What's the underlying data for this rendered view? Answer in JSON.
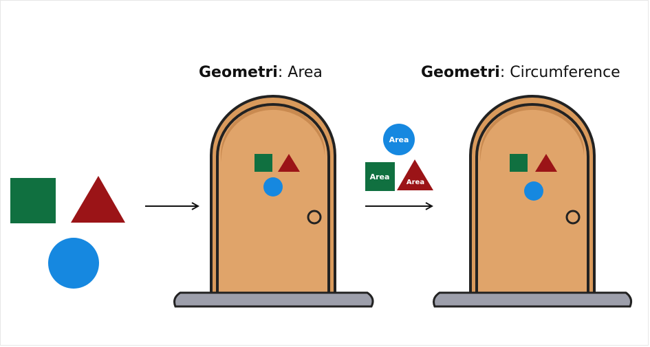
{
  "diagram": {
    "titles": [
      {
        "bold": "Geometri",
        "rest": ": Area"
      },
      {
        "bold": "Geometri",
        "rest": ": Circumference"
      }
    ],
    "badge_labels": {
      "circle": "Area",
      "square": "Area",
      "triangle": "Area"
    },
    "colors": {
      "green": "#107040",
      "red": "#9b1417",
      "blue": "#1688e0",
      "door": "#e0a46a",
      "door_shadow": "#c98a50",
      "frame": "#d99a5c",
      "outline": "#222222",
      "step": "#9d9fab"
    }
  }
}
